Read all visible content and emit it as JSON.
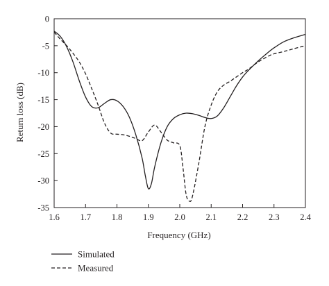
{
  "chart_data": {
    "type": "line",
    "title": "",
    "xlabel": "Frequency (GHz)",
    "ylabel": "Return loss (dB)",
    "xlim": [
      1.6,
      2.4
    ],
    "ylim": [
      -35,
      0
    ],
    "xticks": [
      "1.6",
      "1.7",
      "1.8",
      "1.9",
      "2.0",
      "2.1",
      "2.2",
      "2.3",
      "2.4"
    ],
    "yticks": [
      "0",
      "-5",
      "-10",
      "-15",
      "-20",
      "-25",
      "-30",
      "-35"
    ],
    "grid": false,
    "legend": "bottom-left, below plot",
    "series": [
      {
        "name": "Simulated",
        "style": "solid",
        "color": "#231f20",
        "x": [
          1.6,
          1.62,
          1.64,
          1.66,
          1.68,
          1.7,
          1.72,
          1.74,
          1.76,
          1.78,
          1.8,
          1.82,
          1.84,
          1.86,
          1.88,
          1.89,
          1.9,
          1.91,
          1.92,
          1.94,
          1.96,
          1.98,
          2.0,
          2.02,
          2.04,
          2.06,
          2.08,
          2.1,
          2.12,
          2.14,
          2.16,
          2.18,
          2.2,
          2.22,
          2.25,
          2.28,
          2.3,
          2.33,
          2.36,
          2.4
        ],
        "y": [
          -2.3,
          -3.3,
          -5.2,
          -8.0,
          -11.5,
          -14.5,
          -16.3,
          -16.5,
          -15.7,
          -15.0,
          -15.2,
          -16.3,
          -18.3,
          -21.5,
          -25.8,
          -29.0,
          -31.5,
          -30.5,
          -27.5,
          -23.0,
          -20.0,
          -18.5,
          -17.8,
          -17.5,
          -17.6,
          -17.9,
          -18.3,
          -18.5,
          -18.0,
          -16.5,
          -14.5,
          -12.5,
          -10.8,
          -9.5,
          -7.8,
          -6.3,
          -5.4,
          -4.3,
          -3.6,
          -2.9
        ]
      },
      {
        "name": "Measured",
        "style": "dashed",
        "color": "#231f20",
        "x": [
          1.6,
          1.62,
          1.64,
          1.66,
          1.68,
          1.7,
          1.72,
          1.74,
          1.76,
          1.78,
          1.8,
          1.82,
          1.84,
          1.86,
          1.88,
          1.9,
          1.92,
          1.94,
          1.96,
          1.98,
          2.0,
          2.01,
          2.02,
          2.03,
          2.04,
          2.06,
          2.08,
          2.1,
          2.12,
          2.14,
          2.16,
          2.18,
          2.2,
          2.22,
          2.25,
          2.28,
          2.3,
          2.33,
          2.36,
          2.4
        ],
        "y": [
          -2.5,
          -3.8,
          -5.0,
          -6.4,
          -8.0,
          -10.2,
          -13.0,
          -16.0,
          -19.3,
          -21.2,
          -21.4,
          -21.5,
          -21.8,
          -22.2,
          -22.6,
          -21.0,
          -19.7,
          -21.0,
          -22.5,
          -23.0,
          -23.5,
          -27.5,
          -32.5,
          -33.8,
          -33.0,
          -27.0,
          -20.0,
          -16.0,
          -13.5,
          -12.3,
          -11.6,
          -10.8,
          -10.0,
          -9.3,
          -8.0,
          -7.0,
          -6.5,
          -6.1,
          -5.6,
          -5.0
        ]
      }
    ]
  }
}
